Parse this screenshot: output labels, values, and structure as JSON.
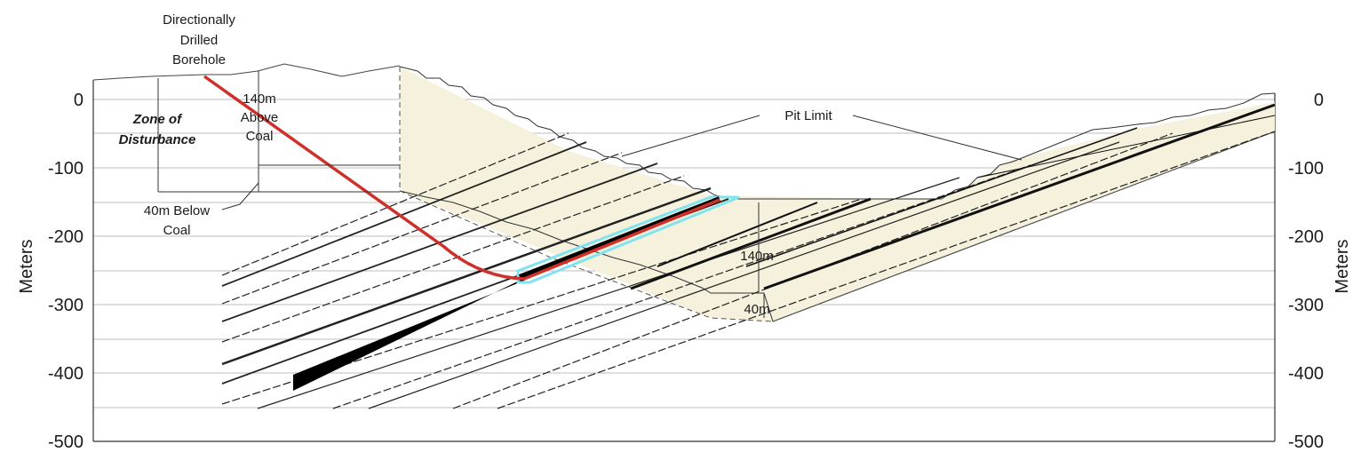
{
  "axis": {
    "title_left": "Meters",
    "title_right": "Meters",
    "ticks_left": [
      "0",
      "-100",
      "-200",
      "-300",
      "-400",
      "-500"
    ],
    "ticks_right": [
      "0",
      "-100",
      "-200",
      "-300",
      "-400",
      "-500"
    ]
  },
  "labels": {
    "borehole_line1": "Directionally",
    "borehole_line2": "Drilled",
    "borehole_line3": "Borehole",
    "above_line1": "140m",
    "above_line2": "Above",
    "above_line3": "Coal",
    "zone_line1": "Zone of",
    "zone_line2": "Disturbance",
    "below_line1": "40m Below",
    "below_line2": "Coal",
    "pit_limit": "Pit Limit",
    "pit_140m": "140m",
    "pit_40m": "40m"
  },
  "colors": {
    "borehole": "#d0302a",
    "highlight": "#7fe3f0",
    "fill": "#f5f1dc",
    "coal": "#000000"
  }
}
